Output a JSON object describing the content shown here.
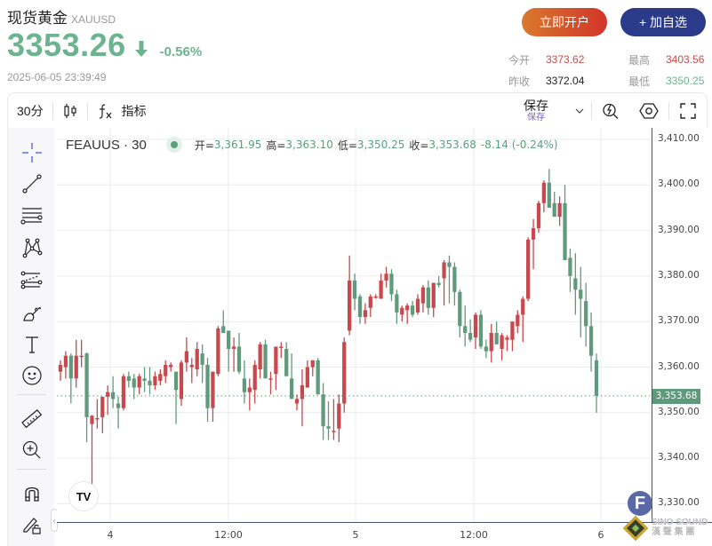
{
  "header": {
    "title": "现货黄金",
    "symbol": "XAUUSD",
    "price": "3353.26",
    "change_pct": "-0.56%",
    "direction_icon": "arrow-down-icon",
    "timestamp": "2025-06-05 23:39:49",
    "open_account_button": "立即开户",
    "add_watchlist_button": "+ 加自选",
    "stats": {
      "open_label": "今开",
      "open_value": "3373.62",
      "prev_close_label": "昨收",
      "prev_close_value": "3372.04",
      "high_label": "最高",
      "high_value": "3403.56",
      "low_label": "最低",
      "low_value": "3350.25"
    }
  },
  "toolbar": {
    "interval": "30分",
    "chart_type_icon": "candlestick-icon",
    "indicators_label": "指标",
    "save_label": "保存",
    "save_sublabel": "保存",
    "icons": [
      "chevron-down-icon",
      "quick-search-icon",
      "settings-hexagon-icon",
      "fullscreen-icon"
    ]
  },
  "sidebar": {
    "tools": [
      "crosshair",
      "trend-line",
      "horizontal-lines",
      "pattern",
      "fib-retracement",
      "brush",
      "text",
      "emoji",
      "ruler",
      "zoom-in",
      "magnet",
      "lock-drawing"
    ]
  },
  "legend": {
    "symbol": "FEAUUS · 30",
    "open_label": "开=",
    "open": "3,361.95",
    "high_label": "高=",
    "high": "3,363.10",
    "low_label": "低=",
    "low": "3,350.25",
    "close_label": "收=",
    "close": "3,353.68",
    "change": "-8.14 (-0.24%)"
  },
  "axis": {
    "y_ticks": [
      "3,410.00",
      "3,400.00",
      "3,390.00",
      "3,380.00",
      "3,370.00",
      "3,360.00",
      "3,350.00",
      "3,340.00",
      "3,330.00"
    ],
    "x_ticks": [
      "4",
      "12:00",
      "5",
      "12:00",
      "6"
    ],
    "last_price_label": "3,353.68"
  },
  "watermark": {
    "tv_logo": "TV",
    "badge": "F",
    "brand_line1": "SINO SOUND",
    "brand_line2": "漢 聲 集 團"
  },
  "colors": {
    "up": "#c8494d",
    "down": "#5f9a7c",
    "price_green": "#6cb48f",
    "red_text": "#d0494a",
    "accent_purple": "#7a5ce0",
    "watch_button": "#2c3a8a"
  },
  "chart_data": {
    "type": "candlestick",
    "title": "FEAUUS · 30",
    "interval": "30m",
    "ylabel": "",
    "ylim": [
      3327,
      3412
    ],
    "color_convention": "red=up, green=down",
    "candles": [
      {
        "o": 3359.0,
        "h": 3361.5,
        "l": 3357.0,
        "c": 3360.5
      },
      {
        "o": 3360.0,
        "h": 3363.5,
        "l": 3357.5,
        "c": 3362.5
      },
      {
        "o": 3362.5,
        "h": 3363.0,
        "l": 3352.0,
        "c": 3357.5
      },
      {
        "o": 3357.5,
        "h": 3366.0,
        "l": 3355.5,
        "c": 3362.5
      },
      {
        "o": 3362.3,
        "h": 3366.0,
        "l": 3360.0,
        "c": 3362.5
      },
      {
        "o": 3363.0,
        "h": 3363.2,
        "l": 3343.5,
        "c": 3349.0
      },
      {
        "o": 3347.5,
        "h": 3349.5,
        "l": 3333.5,
        "c": 3349.3
      },
      {
        "o": 3348.5,
        "h": 3353.0,
        "l": 3346.5,
        "c": 3348.8
      },
      {
        "o": 3349.0,
        "h": 3353.0,
        "l": 3345.5,
        "c": 3353.5
      },
      {
        "o": 3353.5,
        "h": 3356.0,
        "l": 3349.5,
        "c": 3354.5
      },
      {
        "o": 3354.5,
        "h": 3358.0,
        "l": 3351.0,
        "c": 3353.0
      },
      {
        "o": 3352.0,
        "h": 3353.5,
        "l": 3346.5,
        "c": 3351.0
      },
      {
        "o": 3351.0,
        "h": 3358.5,
        "l": 3350.5,
        "c": 3358.0
      },
      {
        "o": 3358.0,
        "h": 3359.0,
        "l": 3355.5,
        "c": 3357.0
      },
      {
        "o": 3357.5,
        "h": 3358.5,
        "l": 3353.0,
        "c": 3355.5
      },
      {
        "o": 3355.5,
        "h": 3358.5,
        "l": 3354.0,
        "c": 3358.0
      },
      {
        "o": 3357.5,
        "h": 3360.0,
        "l": 3354.5,
        "c": 3357.0
      },
      {
        "o": 3357.0,
        "h": 3360.0,
        "l": 3354.0,
        "c": 3356.0
      },
      {
        "o": 3356.0,
        "h": 3359.0,
        "l": 3355.0,
        "c": 3358.0
      },
      {
        "o": 3357.0,
        "h": 3359.5,
        "l": 3356.0,
        "c": 3358.5
      },
      {
        "o": 3358.0,
        "h": 3361.5,
        "l": 3356.5,
        "c": 3360.5
      },
      {
        "o": 3360.0,
        "h": 3361.0,
        "l": 3359.0,
        "c": 3360.5
      },
      {
        "o": 3359.0,
        "h": 3359.0,
        "l": 3347.5,
        "c": 3355.0
      },
      {
        "o": 3353.0,
        "h": 3361.5,
        "l": 3351.5,
        "c": 3361.0
      },
      {
        "o": 3361.0,
        "h": 3366.5,
        "l": 3359.0,
        "c": 3363.5
      },
      {
        "o": 3360.0,
        "h": 3362.0,
        "l": 3356.5,
        "c": 3360.5
      },
      {
        "o": 3359.5,
        "h": 3365.5,
        "l": 3358.0,
        "c": 3364.0
      },
      {
        "o": 3363.0,
        "h": 3365.0,
        "l": 3356.5,
        "c": 3360.5
      },
      {
        "o": 3360.5,
        "h": 3362.0,
        "l": 3348.0,
        "c": 3351.0
      },
      {
        "o": 3351.0,
        "h": 3359.0,
        "l": 3348.0,
        "c": 3359.0
      },
      {
        "o": 3358.5,
        "h": 3369.0,
        "l": 3358.0,
        "c": 3368.5
      },
      {
        "o": 3369.0,
        "h": 3372.5,
        "l": 3367.5,
        "c": 3367.5
      },
      {
        "o": 3368.0,
        "h": 3368.0,
        "l": 3359.0,
        "c": 3364.0
      },
      {
        "o": 3364.0,
        "h": 3366.5,
        "l": 3359.0,
        "c": 3364.5
      },
      {
        "o": 3364.5,
        "h": 3367.5,
        "l": 3358.5,
        "c": 3359.0
      },
      {
        "o": 3357.5,
        "h": 3361.5,
        "l": 3352.0,
        "c": 3354.5
      },
      {
        "o": 3354.5,
        "h": 3357.5,
        "l": 3350.5,
        "c": 3355.5
      },
      {
        "o": 3355.0,
        "h": 3361.5,
        "l": 3352.0,
        "c": 3360.5
      },
      {
        "o": 3359.5,
        "h": 3365.5,
        "l": 3357.5,
        "c": 3365.0
      },
      {
        "o": 3365.0,
        "h": 3366.0,
        "l": 3357.5,
        "c": 3357.5
      },
      {
        "o": 3357.5,
        "h": 3359.0,
        "l": 3354.0,
        "c": 3357.5
      },
      {
        "o": 3358.5,
        "h": 3363.5,
        "l": 3355.0,
        "c": 3364.5
      },
      {
        "o": 3364.5,
        "h": 3365.5,
        "l": 3362.0,
        "c": 3364.5
      },
      {
        "o": 3364.0,
        "h": 3365.5,
        "l": 3358.5,
        "c": 3358.0
      },
      {
        "o": 3357.5,
        "h": 3363.0,
        "l": 3354.0,
        "c": 3353.0
      },
      {
        "o": 3352.0,
        "h": 3354.0,
        "l": 3350.5,
        "c": 3353.0
      },
      {
        "o": 3353.0,
        "h": 3359.5,
        "l": 3347.0,
        "c": 3356.0
      },
      {
        "o": 3355.5,
        "h": 3361.5,
        "l": 3355.5,
        "c": 3360.0
      },
      {
        "o": 3360.0,
        "h": 3361.5,
        "l": 3358.0,
        "c": 3361.5
      },
      {
        "o": 3361.5,
        "h": 3362.0,
        "l": 3354.0,
        "c": 3354.0
      },
      {
        "o": 3354.0,
        "h": 3356.5,
        "l": 3344.0,
        "c": 3347.0
      },
      {
        "o": 3347.0,
        "h": 3352.5,
        "l": 3344.0,
        "c": 3346.5
      },
      {
        "o": 3346.0,
        "h": 3353.0,
        "l": 3344.0,
        "c": 3346.0
      },
      {
        "o": 3346.5,
        "h": 3354.0,
        "l": 3343.5,
        "c": 3352.0
      },
      {
        "o": 3352.0,
        "h": 3366.5,
        "l": 3350.0,
        "c": 3365.5
      },
      {
        "o": 3368.0,
        "h": 3384.5,
        "l": 3367.0,
        "c": 3379.0
      },
      {
        "o": 3379.0,
        "h": 3380.5,
        "l": 3372.5,
        "c": 3375.0
      },
      {
        "o": 3375.5,
        "h": 3376.0,
        "l": 3369.5,
        "c": 3371.0
      },
      {
        "o": 3371.0,
        "h": 3374.0,
        "l": 3369.5,
        "c": 3372.5
      },
      {
        "o": 3373.0,
        "h": 3376.0,
        "l": 3371.0,
        "c": 3375.5
      },
      {
        "o": 3375.5,
        "h": 3376.0,
        "l": 3375.0,
        "c": 3375.5
      },
      {
        "o": 3375.0,
        "h": 3380.5,
        "l": 3375.0,
        "c": 3379.0
      },
      {
        "o": 3379.0,
        "h": 3382.0,
        "l": 3377.5,
        "c": 3380.5
      },
      {
        "o": 3380.5,
        "h": 3381.5,
        "l": 3374.5,
        "c": 3376.0
      },
      {
        "o": 3376.0,
        "h": 3377.0,
        "l": 3369.5,
        "c": 3372.0
      },
      {
        "o": 3371.5,
        "h": 3373.5,
        "l": 3370.0,
        "c": 3373.0
      },
      {
        "o": 3372.5,
        "h": 3374.0,
        "l": 3369.5,
        "c": 3373.5
      },
      {
        "o": 3373.5,
        "h": 3374.5,
        "l": 3371.0,
        "c": 3371.5
      },
      {
        "o": 3372.0,
        "h": 3376.0,
        "l": 3371.5,
        "c": 3375.0
      },
      {
        "o": 3374.0,
        "h": 3378.0,
        "l": 3372.0,
        "c": 3377.5
      },
      {
        "o": 3377.5,
        "h": 3379.0,
        "l": 3371.5,
        "c": 3373.0
      },
      {
        "o": 3373.0,
        "h": 3377.0,
        "l": 3371.0,
        "c": 3378.5
      },
      {
        "o": 3378.5,
        "h": 3380.0,
        "l": 3377.5,
        "c": 3378.0
      },
      {
        "o": 3379.5,
        "h": 3383.5,
        "l": 3373.5,
        "c": 3383.0
      },
      {
        "o": 3383.0,
        "h": 3384.5,
        "l": 3374.0,
        "c": 3382.0
      },
      {
        "o": 3382.0,
        "h": 3383.0,
        "l": 3373.5,
        "c": 3376.5
      },
      {
        "o": 3376.5,
        "h": 3377.0,
        "l": 3366.5,
        "c": 3369.0
      },
      {
        "o": 3369.0,
        "h": 3373.5,
        "l": 3364.5,
        "c": 3367.5
      },
      {
        "o": 3367.5,
        "h": 3370.5,
        "l": 3365.5,
        "c": 3366.0
      },
      {
        "o": 3366.5,
        "h": 3372.0,
        "l": 3364.0,
        "c": 3371.5
      },
      {
        "o": 3371.5,
        "h": 3372.5,
        "l": 3364.0,
        "c": 3364.5
      },
      {
        "o": 3364.5,
        "h": 3366.0,
        "l": 3362.0,
        "c": 3363.5
      },
      {
        "o": 3363.5,
        "h": 3369.5,
        "l": 3361.0,
        "c": 3367.5
      },
      {
        "o": 3367.5,
        "h": 3370.0,
        "l": 3365.0,
        "c": 3365.0
      },
      {
        "o": 3364.0,
        "h": 3367.5,
        "l": 3361.5,
        "c": 3367.0
      },
      {
        "o": 3366.0,
        "h": 3367.0,
        "l": 3363.5,
        "c": 3366.5
      },
      {
        "o": 3366.0,
        "h": 3370.0,
        "l": 3363.5,
        "c": 3370.0
      },
      {
        "o": 3369.0,
        "h": 3372.5,
        "l": 3367.5,
        "c": 3371.5
      },
      {
        "o": 3371.5,
        "h": 3375.5,
        "l": 3365.5,
        "c": 3375.0
      },
      {
        "o": 3375.0,
        "h": 3388.5,
        "l": 3374.5,
        "c": 3388.0
      },
      {
        "o": 3388.0,
        "h": 3392.5,
        "l": 3381.5,
        "c": 3390.5
      },
      {
        "o": 3390.5,
        "h": 3396.5,
        "l": 3389.5,
        "c": 3396.0
      },
      {
        "o": 3396.0,
        "h": 3401.0,
        "l": 3394.0,
        "c": 3400.5
      },
      {
        "o": 3400.5,
        "h": 3403.5,
        "l": 3395.0,
        "c": 3395.0
      },
      {
        "o": 3396.0,
        "h": 3398.5,
        "l": 3393.5,
        "c": 3393.0
      },
      {
        "o": 3393.0,
        "h": 3397.5,
        "l": 3391.0,
        "c": 3396.0
      },
      {
        "o": 3396.0,
        "h": 3400.0,
        "l": 3385.0,
        "c": 3383.5
      },
      {
        "o": 3384.0,
        "h": 3386.0,
        "l": 3376.5,
        "c": 3380.0
      },
      {
        "o": 3379.5,
        "h": 3385.0,
        "l": 3371.5,
        "c": 3377.0
      },
      {
        "o": 3377.0,
        "h": 3382.0,
        "l": 3366.5,
        "c": 3375.0
      },
      {
        "o": 3374.5,
        "h": 3378.5,
        "l": 3364.5,
        "c": 3369.0
      },
      {
        "o": 3369.0,
        "h": 3372.0,
        "l": 3359.0,
        "c": 3362.5
      },
      {
        "o": 3361.5,
        "h": 3363.0,
        "l": 3350.0,
        "c": 3353.7
      }
    ]
  }
}
